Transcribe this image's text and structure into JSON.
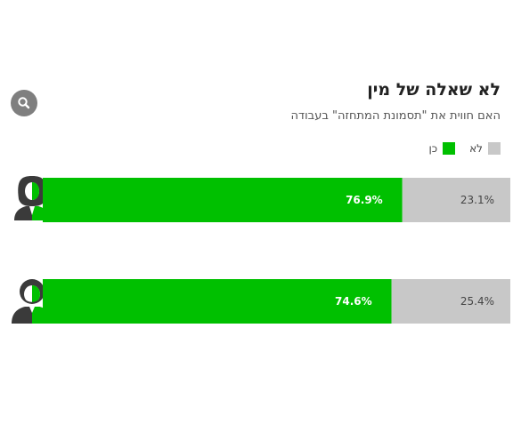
{
  "header": {
    "title": "לא שאלה של מין",
    "subtitle": "האם חווית את \"תסמונת המתחזה\" בעבודה"
  },
  "zoom_button": {
    "icon": "magnifier-icon"
  },
  "colors": {
    "yes": "#00c000",
    "no": "#c8c8c8",
    "icon": "#3a3a3a",
    "icon_accent": "#00c000"
  },
  "chart_data": {
    "type": "bar",
    "orientation": "horizontal",
    "stacked": true,
    "normalized_to": 100,
    "categories": [
      "female",
      "male"
    ],
    "category_icons": [
      "woman-icon",
      "man-icon"
    ],
    "series": [
      {
        "name": "כן",
        "values": [
          76.9,
          74.6
        ],
        "labels": [
          "76.9%",
          "74.6%"
        ],
        "color": "#00c000"
      },
      {
        "name": "לא",
        "values": [
          23.1,
          25.4
        ],
        "labels": [
          "23.1%",
          "25.4%"
        ],
        "color": "#c8c8c8"
      }
    ],
    "legend_position": "top-right",
    "grid": false
  }
}
